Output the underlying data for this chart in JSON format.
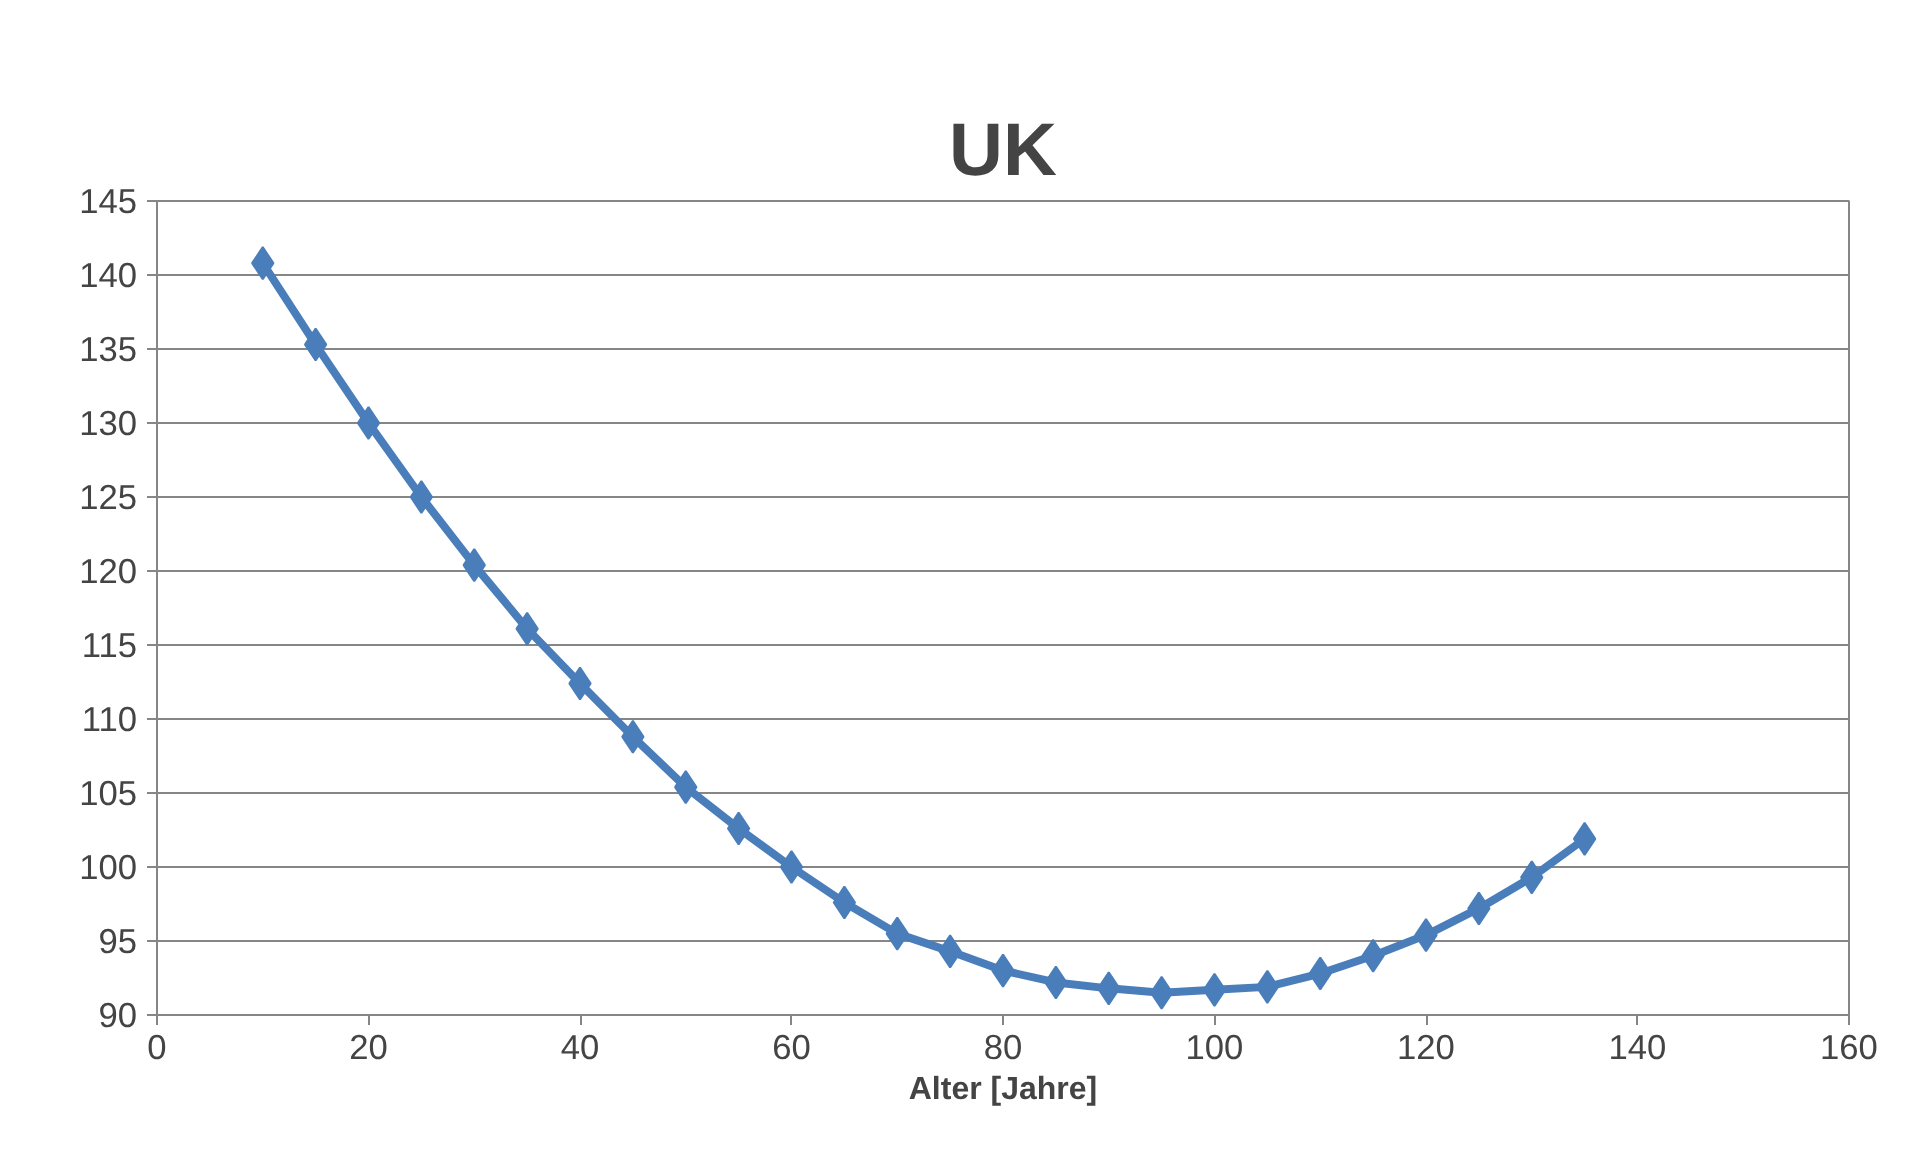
{
  "chart_data": {
    "type": "line",
    "title": "UK",
    "xlabel": "Alter [Jahre]",
    "x": [
      10,
      15,
      20,
      25,
      30,
      35,
      40,
      45,
      50,
      55,
      60,
      65,
      70,
      75,
      80,
      85,
      90,
      95,
      100,
      105,
      110,
      115,
      120,
      125,
      130,
      135
    ],
    "series": [
      {
        "color": "#4a7ebb",
        "values": [
          140.8,
          135.3,
          130.0,
          125.0,
          120.4,
          116.1,
          112.4,
          108.8,
          105.4,
          102.6,
          100.0,
          97.6,
          95.5,
          94.3,
          93.0,
          92.2,
          91.8,
          91.5,
          91.7,
          91.9,
          92.8,
          94.0,
          95.4,
          97.2,
          99.3,
          101.9
        ]
      }
    ],
    "xlim": [
      0,
      160
    ],
    "xticks": [
      0,
      20,
      40,
      60,
      80,
      100,
      120,
      140,
      160
    ],
    "ylim": [
      90,
      145
    ],
    "yticks": [
      90,
      95,
      100,
      105,
      110,
      115,
      120,
      125,
      130,
      135,
      140,
      145
    ],
    "grid": "y",
    "marker": "diamond",
    "line_style": "solid"
  }
}
